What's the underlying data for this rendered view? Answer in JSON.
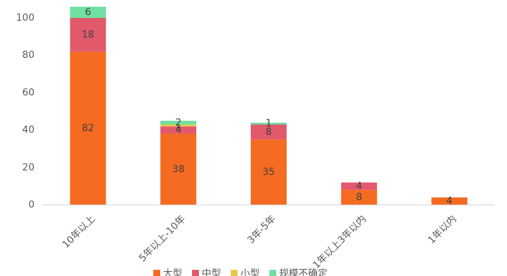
{
  "chart_data": {
    "type": "stacked_bar",
    "categories": [
      "10年以上",
      "5年以上-10年",
      "3年-5年",
      "1年以上3年以内",
      "1年以内"
    ],
    "series": [
      {
        "name": "大型",
        "color": "#f46b21",
        "values": [
          82,
          38,
          35,
          8,
          4
        ]
      },
      {
        "name": "中型",
        "color": "#e2596b",
        "values": [
          18,
          4,
          8,
          4,
          null
        ]
      },
      {
        "name": "小型",
        "color": "#e6c94b",
        "values": [
          null,
          1,
          null,
          null,
          null
        ]
      },
      {
        "name": "规模不确定",
        "color": "#6fe0a2",
        "values": [
          6,
          2,
          1,
          null,
          null
        ]
      }
    ],
    "ylim": [
      0,
      110
    ],
    "yticks": [
      0,
      20,
      40,
      60,
      80,
      100
    ],
    "grid": false,
    "legend": "bottom"
  }
}
